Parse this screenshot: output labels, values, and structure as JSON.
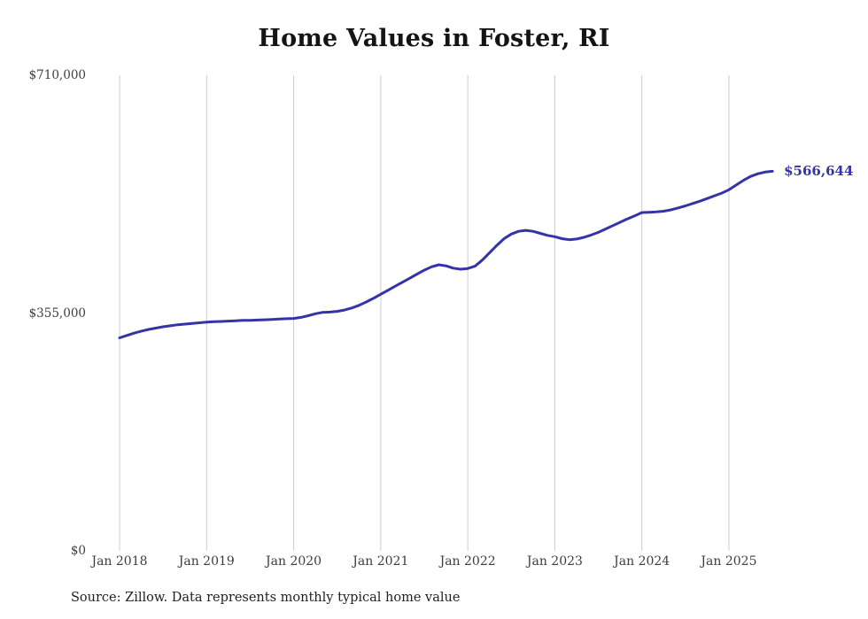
{
  "title": "Home Values in Foster, RI",
  "source_note": "Source: Zillow. Data represents monthly typical home value",
  "end_label": "$566,644",
  "colors": {
    "line": "#3533a8",
    "grid": "#cccccc",
    "axis_text": "#3d3d3d",
    "title_text": "#141414",
    "background": "#ffffff"
  },
  "chart_data": {
    "type": "line",
    "title": "Home Values in Foster, RI",
    "xlabel": "",
    "ylabel": "",
    "ylim": [
      0,
      710000
    ],
    "grid": "vertical-only",
    "legend": "none",
    "frequency": "monthly",
    "x_start": "Jan 2018",
    "x_ticks": [
      "Jan 2018",
      "Jan 2019",
      "Jan 2020",
      "Jan 2021",
      "Jan 2022",
      "Jan 2023",
      "Jan 2024",
      "Jan 2025"
    ],
    "y_ticks": [
      {
        "value": 0,
        "label": "$0"
      },
      {
        "value": 355000,
        "label": "$355,000"
      },
      {
        "value": 710000,
        "label": "$710,000"
      }
    ],
    "series": [
      {
        "name": "Typical home value",
        "final_value": 566644,
        "final_value_label": "$566,644",
        "values": [
          318000,
          321500,
          325000,
          328000,
          330500,
          332500,
          334500,
          336000,
          337500,
          338500,
          339500,
          340500,
          341500,
          342000,
          342500,
          343000,
          343500,
          344000,
          344000,
          344500,
          345000,
          345500,
          346000,
          346500,
          347000,
          348500,
          351000,
          354000,
          356000,
          356500,
          357500,
          359500,
          362500,
          366500,
          371500,
          377000,
          383000,
          389000,
          395000,
          401000,
          407000,
          413000,
          419000,
          424000,
          427000,
          425500,
          422000,
          420500,
          421500,
          425000,
          434000,
          445000,
          456000,
          466000,
          473000,
          477000,
          478500,
          477000,
          474000,
          471000,
          469000,
          466000,
          464500,
          465500,
          468000,
          471500,
          475500,
          480500,
          485500,
          490500,
          495500,
          500000,
          505000,
          505500,
          506000,
          507000,
          509000,
          512000,
          515000,
          518500,
          522000,
          526000,
          530000,
          534000,
          539000,
          546000,
          553000,
          559000,
          563000,
          565500,
          566644
        ]
      }
    ]
  }
}
